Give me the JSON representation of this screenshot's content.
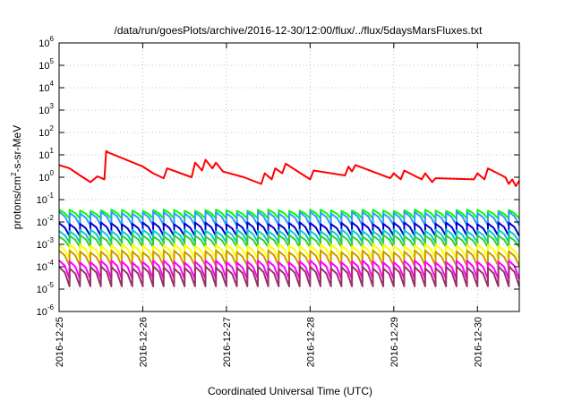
{
  "chart_data": {
    "type": "line",
    "title": "/data/run/goesPlots/archive/2016-12-30/12:00/flux/../flux/5daysMarsFluxes.txt",
    "xlabel": "Coordinated Universal Time (UTC)",
    "ylabel_parts": {
      "base": "protons/cm",
      "exp": "2",
      "rest": "-s-sr-MeV"
    },
    "y_scale": "log",
    "ylim": [
      1e-06,
      1000000.0
    ],
    "y_ticks": [
      {
        "base": "10",
        "exp": "-6"
      },
      {
        "base": "10",
        "exp": "-5"
      },
      {
        "base": "10",
        "exp": "-4"
      },
      {
        "base": "10",
        "exp": "-3"
      },
      {
        "base": "10",
        "exp": "-2"
      },
      {
        "base": "10",
        "exp": "-1"
      },
      {
        "base": "10",
        "exp": "0"
      },
      {
        "base": "10",
        "exp": "1"
      },
      {
        "base": "10",
        "exp": "2"
      },
      {
        "base": "10",
        "exp": "3"
      },
      {
        "base": "10",
        "exp": "4"
      },
      {
        "base": "10",
        "exp": "5"
      },
      {
        "base": "10",
        "exp": "6"
      }
    ],
    "x_ticks": [
      "2016-12-25",
      "2016-12-26",
      "2016-12-27",
      "2016-12-28",
      "2016-12-29",
      "2016-12-30"
    ],
    "xlim": [
      "2016-12-25 00:00",
      "2016-12-30 12:00"
    ],
    "grid": true,
    "series": [
      {
        "color": "#ff0000",
        "x": [
          "2016-12-25 00:00",
          "2016-12-25 03:00",
          "2016-12-25 06:00",
          "2016-12-25 09:00",
          "2016-12-25 11:00",
          "2016-12-25 13:00",
          "2016-12-25 13:30",
          "2016-12-25 14:00",
          "2016-12-25 14:30",
          "2016-12-26 00:00",
          "2016-12-26 03:00",
          "2016-12-26 06:00",
          "2016-12-26 07:00",
          "2016-12-26 14:00",
          "2016-12-26 15:00",
          "2016-12-26 17:00",
          "2016-12-26 18:00",
          "2016-12-26 20:00",
          "2016-12-26 21:00",
          "2016-12-26 23:00",
          "2016-12-27 05:00",
          "2016-12-27 10:00",
          "2016-12-27 11:00",
          "2016-12-27 13:00",
          "2016-12-27 14:00",
          "2016-12-27 16:00",
          "2016-12-27 17:00",
          "2016-12-28 00:00",
          "2016-12-28 01:00",
          "2016-12-28 10:00",
          "2016-12-28 11:00",
          "2016-12-28 12:00",
          "2016-12-28 13:00",
          "2016-12-28 23:00",
          "2016-12-29 00:00",
          "2016-12-29 02:00",
          "2016-12-29 03:00",
          "2016-12-29 08:00",
          "2016-12-29 09:00",
          "2016-12-29 11:00",
          "2016-12-29 12:00",
          "2016-12-29 23:00",
          "2016-12-30 00:00",
          "2016-12-30 02:00",
          "2016-12-30 03:00",
          "2016-12-30 08:00",
          "2016-12-30 09:00",
          "2016-12-30 10:00",
          "2016-12-30 11:00",
          "2016-12-30 12:00"
        ],
        "y": [
          3.5,
          2.5,
          1.2,
          0.6,
          1.1,
          0.8,
          15,
          13,
          12,
          3.0,
          1.5,
          0.9,
          2.5,
          1.0,
          4.5,
          2.0,
          6.0,
          2.5,
          4.5,
          1.8,
          1.0,
          0.5,
          1.5,
          0.8,
          2.5,
          1.5,
          4.0,
          0.8,
          2.0,
          1.2,
          3.0,
          1.8,
          3.5,
          0.9,
          1.5,
          0.8,
          2.0,
          0.8,
          1.5,
          0.6,
          0.9,
          0.8,
          1.5,
          0.8,
          2.5,
          1.0,
          0.5,
          0.8,
          0.4,
          0.7
        ]
      },
      {
        "color": "#00ff00",
        "baseline": 0.02,
        "amplitude": 0.8
      },
      {
        "color": "#3399ff",
        "baseline": 0.012,
        "amplitude": 1.4
      },
      {
        "color": "#0000cc",
        "baseline": 0.004,
        "amplitude": 1.4
      },
      {
        "color": "#00cccc",
        "baseline": 0.002,
        "amplitude": 1.3
      },
      {
        "color": "#33cc33",
        "baseline": 0.0012,
        "amplitude": 1.2
      },
      {
        "color": "#ffff00",
        "baseline": 0.0004,
        "amplitude": 1.5
      },
      {
        "color": "#cc9900",
        "baseline": 0.0002,
        "amplitude": 1.7
      },
      {
        "color": "#ff00ff",
        "baseline": 6e-05,
        "amplitude": 2.2
      },
      {
        "color": "#993366",
        "baseline": 3e-05,
        "amplitude": 2.5
      }
    ]
  }
}
